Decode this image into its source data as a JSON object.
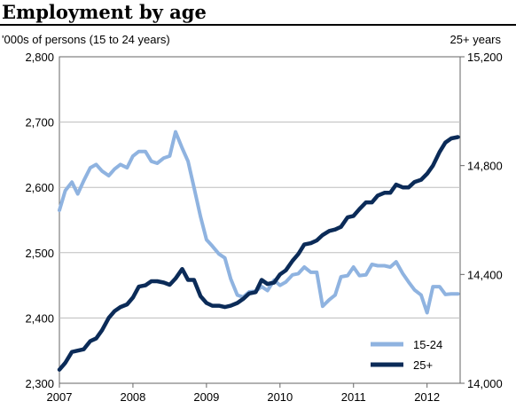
{
  "chart_data": {
    "type": "line",
    "title": "Employment by age",
    "ylabel_left": "'000s of persons (15 to 24 years)",
    "ylabel_right": "25+ years",
    "x_ticks": [
      "2007",
      "2008",
      "2009",
      "2010",
      "2011",
      "2012"
    ],
    "y_left_ticks": [
      "2,300",
      "2,400",
      "2,500",
      "2,600",
      "2,700",
      "2,800"
    ],
    "y_right_ticks": [
      "14,000",
      "14,400",
      "14,800",
      "15,200"
    ],
    "x_range": [
      2007.0,
      2012.45
    ],
    "ylim_left": [
      2300,
      2800
    ],
    "ylim_right": [
      14000,
      15200
    ],
    "grid": "horizontal",
    "legend_position": "bottom-right",
    "series": [
      {
        "name": "15-24",
        "axis": "left",
        "color": "#8fb3e0",
        "points": [
          [
            2007.0,
            2565
          ],
          [
            2007.08,
            2595
          ],
          [
            2007.17,
            2608
          ],
          [
            2007.25,
            2590
          ],
          [
            2007.33,
            2610
          ],
          [
            2007.42,
            2630
          ],
          [
            2007.5,
            2635
          ],
          [
            2007.58,
            2625
          ],
          [
            2007.67,
            2618
          ],
          [
            2007.75,
            2628
          ],
          [
            2007.83,
            2635
          ],
          [
            2007.92,
            2630
          ],
          [
            2008.0,
            2648
          ],
          [
            2008.08,
            2655
          ],
          [
            2008.17,
            2655
          ],
          [
            2008.25,
            2640
          ],
          [
            2008.33,
            2637
          ],
          [
            2008.42,
            2645
          ],
          [
            2008.5,
            2648
          ],
          [
            2008.58,
            2685
          ],
          [
            2008.67,
            2660
          ],
          [
            2008.75,
            2640
          ],
          [
            2008.83,
            2600
          ],
          [
            2008.92,
            2555
          ],
          [
            2009.0,
            2520
          ],
          [
            2009.08,
            2510
          ],
          [
            2009.17,
            2498
          ],
          [
            2009.25,
            2492
          ],
          [
            2009.33,
            2460
          ],
          [
            2009.42,
            2435
          ],
          [
            2009.5,
            2432
          ],
          [
            2009.58,
            2440
          ],
          [
            2009.67,
            2441
          ],
          [
            2009.75,
            2448
          ],
          [
            2009.83,
            2442
          ],
          [
            2009.92,
            2458
          ],
          [
            2010.0,
            2450
          ],
          [
            2010.08,
            2455
          ],
          [
            2010.17,
            2466
          ],
          [
            2010.25,
            2468
          ],
          [
            2010.33,
            2478
          ],
          [
            2010.42,
            2470
          ],
          [
            2010.5,
            2470
          ],
          [
            2010.58,
            2418
          ],
          [
            2010.67,
            2428
          ],
          [
            2010.75,
            2435
          ],
          [
            2010.83,
            2463
          ],
          [
            2010.92,
            2465
          ],
          [
            2011.0,
            2478
          ],
          [
            2011.08,
            2465
          ],
          [
            2011.17,
            2466
          ],
          [
            2011.25,
            2482
          ],
          [
            2011.33,
            2480
          ],
          [
            2011.42,
            2480
          ],
          [
            2011.5,
            2478
          ],
          [
            2011.58,
            2486
          ],
          [
            2011.67,
            2468
          ],
          [
            2011.75,
            2455
          ],
          [
            2011.83,
            2443
          ],
          [
            2011.92,
            2435
          ],
          [
            2012.0,
            2408
          ],
          [
            2012.08,
            2448
          ],
          [
            2012.17,
            2448
          ],
          [
            2012.25,
            2436
          ],
          [
            2012.33,
            2437
          ],
          [
            2012.42,
            2437
          ]
        ]
      },
      {
        "name": "25+",
        "axis": "right",
        "color": "#0b2b58",
        "points": [
          [
            2007.0,
            14050
          ],
          [
            2007.08,
            14075
          ],
          [
            2007.17,
            14115
          ],
          [
            2007.25,
            14120
          ],
          [
            2007.33,
            14125
          ],
          [
            2007.42,
            14155
          ],
          [
            2007.5,
            14165
          ],
          [
            2007.58,
            14195
          ],
          [
            2007.67,
            14240
          ],
          [
            2007.75,
            14265
          ],
          [
            2007.83,
            14280
          ],
          [
            2007.92,
            14290
          ],
          [
            2008.0,
            14315
          ],
          [
            2008.08,
            14355
          ],
          [
            2008.17,
            14360
          ],
          [
            2008.25,
            14375
          ],
          [
            2008.33,
            14375
          ],
          [
            2008.42,
            14370
          ],
          [
            2008.5,
            14362
          ],
          [
            2008.58,
            14385
          ],
          [
            2008.67,
            14420
          ],
          [
            2008.75,
            14380
          ],
          [
            2008.83,
            14380
          ],
          [
            2008.92,
            14320
          ],
          [
            2009.0,
            14295
          ],
          [
            2009.08,
            14285
          ],
          [
            2009.17,
            14285
          ],
          [
            2009.25,
            14280
          ],
          [
            2009.33,
            14285
          ],
          [
            2009.42,
            14295
          ],
          [
            2009.5,
            14310
          ],
          [
            2009.58,
            14330
          ],
          [
            2009.67,
            14335
          ],
          [
            2009.75,
            14380
          ],
          [
            2009.83,
            14365
          ],
          [
            2009.92,
            14370
          ],
          [
            2010.0,
            14400
          ],
          [
            2010.08,
            14415
          ],
          [
            2010.17,
            14450
          ],
          [
            2010.25,
            14475
          ],
          [
            2010.33,
            14510
          ],
          [
            2010.42,
            14515
          ],
          [
            2010.5,
            14525
          ],
          [
            2010.58,
            14545
          ],
          [
            2010.67,
            14560
          ],
          [
            2010.75,
            14565
          ],
          [
            2010.83,
            14575
          ],
          [
            2010.92,
            14610
          ],
          [
            2011.0,
            14615
          ],
          [
            2011.08,
            14640
          ],
          [
            2011.17,
            14665
          ],
          [
            2011.25,
            14665
          ],
          [
            2011.33,
            14690
          ],
          [
            2011.42,
            14700
          ],
          [
            2011.5,
            14700
          ],
          [
            2011.58,
            14730
          ],
          [
            2011.67,
            14720
          ],
          [
            2011.75,
            14720
          ],
          [
            2011.83,
            14740
          ],
          [
            2011.92,
            14748
          ],
          [
            2012.0,
            14770
          ],
          [
            2012.08,
            14800
          ],
          [
            2012.17,
            14850
          ],
          [
            2012.25,
            14885
          ],
          [
            2012.33,
            14900
          ],
          [
            2012.42,
            14905
          ]
        ]
      }
    ]
  }
}
